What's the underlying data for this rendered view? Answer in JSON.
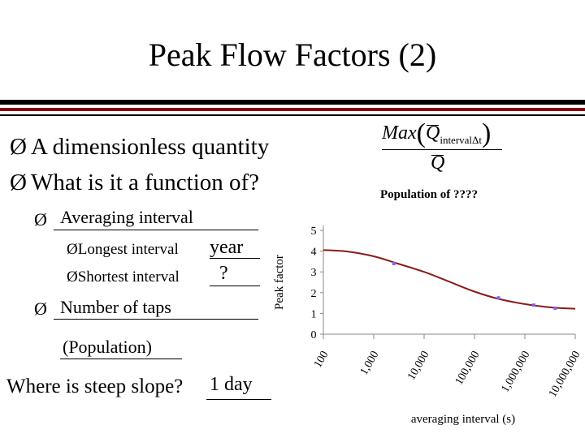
{
  "slide": {
    "title": "Peak Flow Factors (2)",
    "arrow": "Ø",
    "bullets": [
      "A dimensionless quantity",
      "What is it a function of?"
    ],
    "averaging_interval": "Averaging interval",
    "longest_label": "Longest interval",
    "longest_answer": "year",
    "shortest_label": "Shortest interval",
    "shortest_answer": "?",
    "number_of_taps": "Number of taps",
    "population": "(Population)",
    "steep_question": "Where is steep slope?",
    "steep_answer": "1 day"
  },
  "formula": {
    "max": "Max",
    "q": "Q",
    "subscript": "intervalΔt",
    "denominator": "Q"
  },
  "chart_data": {
    "type": "line",
    "title": "Population of ????",
    "xlabel": "averaging interval (s)",
    "ylabel": "Peak factor",
    "x_scale": "log",
    "xlim": [
      100,
      10000000
    ],
    "ylim": [
      0,
      5
    ],
    "x_ticks": [
      100,
      1000,
      10000,
      100000,
      1000000,
      10000000
    ],
    "x_tick_labels": [
      "100",
      "1,000",
      "10,000",
      "100,000",
      "1,000,000",
      "10,000,000"
    ],
    "y_ticks": [
      0,
      1,
      2,
      3,
      4,
      5
    ],
    "y_tick_labels": [
      "0",
      "1",
      "2",
      "3",
      "4",
      "5"
    ],
    "grid": false,
    "line_color": "#8b1a1a",
    "marker_color": "#7b68ee",
    "curve": {
      "x": [
        100,
        300,
        1000,
        3000,
        10000,
        30000,
        100000,
        300000,
        1000000,
        3000000,
        10000000
      ],
      "y": [
        4.05,
        3.98,
        3.75,
        3.4,
        3.0,
        2.55,
        2.05,
        1.7,
        1.45,
        1.3,
        1.22
      ]
    },
    "points": {
      "x": [
        2500,
        300000,
        1500000,
        4000000
      ],
      "y": [
        3.4,
        1.75,
        1.4,
        1.25
      ]
    }
  }
}
